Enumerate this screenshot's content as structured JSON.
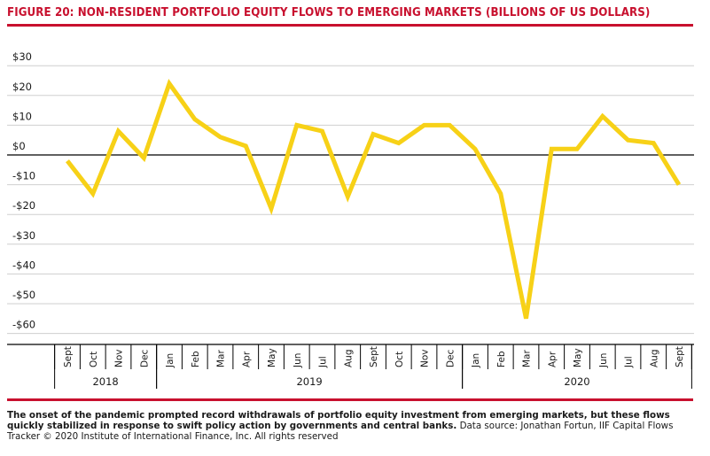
{
  "title": "FIGURE 20: NON-RESIDENT PORTFOLIO EQUITY FLOWS TO EMERGING MARKETS (BILLIONS OF US DOLLARS)",
  "caption": {
    "bold": "The onset of the pandemic prompted record withdrawals of portfolio equity investment from emerging markets, but these flows quickly stabilized in response to swift policy action by governments and central banks.",
    "source": " Data source: Jonathan Fortun, IIF Capital Flows Tracker © 2020 Institute of International Finance, Inc. All rights reserved"
  },
  "colors": {
    "accent": "#c8102e",
    "line": "#f7d117",
    "grid": "#cfcfcf",
    "axis": "#000000"
  },
  "chart_data": {
    "type": "line",
    "title": "FIGURE 20: NON-RESIDENT PORTFOLIO EQUITY FLOWS TO EMERGING MARKETS (BILLIONS OF US DOLLARS)",
    "xlabel": "",
    "ylabel": "",
    "ylim": [
      -65,
      35
    ],
    "grid": true,
    "y_ticks": [
      {
        "value": 30,
        "label": "$30"
      },
      {
        "value": 20,
        "label": "$20"
      },
      {
        "value": 10,
        "label": "$10"
      },
      {
        "value": 0,
        "label": "$0"
      },
      {
        "value": -10,
        "label": "-$10"
      },
      {
        "value": -20,
        "label": "-$20"
      },
      {
        "value": -30,
        "label": "-$30"
      },
      {
        "value": -40,
        "label": "-$40"
      },
      {
        "value": -50,
        "label": "-$50"
      },
      {
        "value": -60,
        "label": "-$60"
      }
    ],
    "categories": [
      "Sept",
      "Oct",
      "Nov",
      "Dec",
      "Jan",
      "Feb",
      "Mar",
      "Apr",
      "May",
      "Jun",
      "Jul",
      "Aug",
      "Sept",
      "Oct",
      "Nov",
      "Dec",
      "Jan",
      "Feb",
      "Mar",
      "Apr",
      "May",
      "Jun",
      "Jul",
      "Aug",
      "Sept"
    ],
    "year_groups": [
      {
        "label": "2018",
        "start": 0,
        "end": 3
      },
      {
        "label": "2019",
        "start": 4,
        "end": 15
      },
      {
        "label": "2020",
        "start": 16,
        "end": 24
      }
    ],
    "series": [
      {
        "values": [
          -2,
          -13,
          8,
          -1,
          24,
          12,
          6,
          3,
          -18,
          10,
          8,
          -14,
          7,
          4,
          10,
          10,
          2,
          -13,
          -55,
          2,
          2,
          13,
          5,
          4,
          -10
        ]
      }
    ]
  }
}
